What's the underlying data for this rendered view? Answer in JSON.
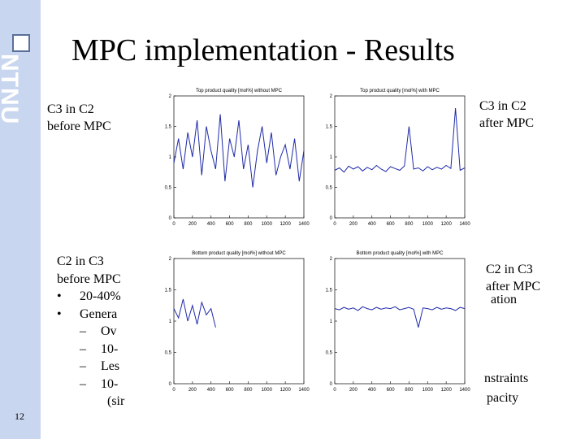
{
  "slide": {
    "title": "MPC implementation - Results",
    "page_number": "12",
    "logo_text": "NTNU",
    "labels": {
      "top_left": [
        "C3 in C2",
        "before MPC"
      ],
      "top_right": [
        "C3 in C2",
        "after MPC"
      ],
      "bottom_right": [
        "C2 in C3",
        "after MPC"
      ]
    },
    "body_lines": [
      {
        "bullet": "",
        "text": "C2 in C3",
        "level": 1
      },
      {
        "bullet": "",
        "text": "before MPC",
        "level": 1
      },
      {
        "bullet": "•",
        "text": "20-40%",
        "level": 1
      },
      {
        "bullet": "•",
        "text": "Genera",
        "level": 1
      },
      {
        "bullet": "–",
        "text": "Ov",
        "level": 2
      },
      {
        "bullet": "–",
        "text": "10-",
        "level": 2
      },
      {
        "bullet": "–",
        "text": "Les",
        "level": 2
      },
      {
        "bullet": "–",
        "text": "10-",
        "level": 2
      },
      {
        "bullet": "",
        "text": "(sir",
        "level": 3
      }
    ],
    "right_fragments": [
      "ation",
      "nstraints",
      "pacity"
    ]
  },
  "chart_data": [
    {
      "type": "line",
      "title": "Top product quality [mol%] without MPC",
      "xlim": [
        0,
        1400
      ],
      "ylim": [
        0,
        2
      ],
      "xticks": [
        "0",
        "200",
        "400",
        "600",
        "800",
        "1000",
        "1200",
        "1400"
      ],
      "yticks": [
        "0",
        "0.5",
        "1",
        "1.5",
        "2"
      ],
      "series": [
        {
          "x": [
            0,
            50,
            100,
            150,
            200,
            250,
            300,
            350,
            400,
            450,
            500,
            550,
            600,
            650,
            700,
            750,
            800,
            850,
            900,
            950,
            1000,
            1050,
            1100,
            1150,
            1200,
            1250,
            1300,
            1350,
            1400
          ],
          "values": [
            0.9,
            1.3,
            0.8,
            1.4,
            1.0,
            1.6,
            0.7,
            1.5,
            1.1,
            0.8,
            1.7,
            0.6,
            1.3,
            1.0,
            1.6,
            0.8,
            1.2,
            0.5,
            1.1,
            1.5,
            0.9,
            1.4,
            0.7,
            1.0,
            1.2,
            0.8,
            1.3,
            0.6,
            1.1
          ]
        }
      ]
    },
    {
      "type": "line",
      "title": "Top product quality [mol%] with MPC",
      "xlim": [
        0,
        1400
      ],
      "ylim": [
        0,
        2
      ],
      "xticks": [
        "0",
        "200",
        "400",
        "600",
        "800",
        "1000",
        "1200",
        "1400"
      ],
      "yticks": [
        "0",
        "0.5",
        "1",
        "1.5",
        "2"
      ],
      "series": [
        {
          "x": [
            0,
            50,
            100,
            150,
            200,
            250,
            300,
            350,
            400,
            450,
            500,
            550,
            600,
            650,
            700,
            750,
            800,
            850,
            900,
            950,
            1000,
            1050,
            1100,
            1150,
            1200,
            1250,
            1300,
            1350,
            1400
          ],
          "values": [
            0.78,
            0.82,
            0.75,
            0.85,
            0.8,
            0.84,
            0.77,
            0.83,
            0.79,
            0.86,
            0.8,
            0.76,
            0.84,
            0.81,
            0.78,
            0.85,
            1.5,
            0.8,
            0.82,
            0.77,
            0.84,
            0.79,
            0.83,
            0.8,
            0.86,
            0.81,
            1.8,
            0.78,
            0.82
          ]
        }
      ]
    },
    {
      "type": "line",
      "title": "Bottom product quality [mol%] without MPC",
      "xlim": [
        0,
        1400
      ],
      "ylim": [
        0,
        2
      ],
      "xticks": [
        "0",
        "200",
        "400",
        "600",
        "800",
        "1000",
        "1200",
        "1400"
      ],
      "yticks": [
        "0",
        "0.5",
        "1",
        "1.5",
        "2"
      ],
      "series": [
        {
          "x": [
            0,
            50,
            100,
            150,
            200,
            250,
            300,
            350,
            400,
            450
          ],
          "values": [
            1.2,
            1.05,
            1.35,
            1.0,
            1.25,
            0.95,
            1.3,
            1.1,
            1.2,
            0.9
          ]
        }
      ]
    },
    {
      "type": "line",
      "title": "Bottom product quality [mol%] with MPC",
      "xlim": [
        0,
        1400
      ],
      "ylim": [
        0,
        2
      ],
      "xticks": [
        "0",
        "200",
        "400",
        "600",
        "800",
        "1000",
        "1200",
        "1400"
      ],
      "yticks": [
        "0",
        "0.5",
        "1",
        "1.5",
        "2"
      ],
      "series": [
        {
          "x": [
            0,
            50,
            100,
            150,
            200,
            250,
            300,
            350,
            400,
            450,
            500,
            550,
            600,
            650,
            700,
            750,
            800,
            850,
            900,
            950,
            1000,
            1050,
            1100,
            1150,
            1200,
            1250,
            1300,
            1350,
            1400
          ],
          "values": [
            1.2,
            1.18,
            1.22,
            1.19,
            1.21,
            1.17,
            1.23,
            1.2,
            1.18,
            1.22,
            1.19,
            1.21,
            1.2,
            1.23,
            1.18,
            1.2,
            1.22,
            1.19,
            0.9,
            1.21,
            1.2,
            1.18,
            1.22,
            1.19,
            1.21,
            1.2,
            1.17,
            1.22,
            1.2
          ]
        }
      ]
    }
  ]
}
